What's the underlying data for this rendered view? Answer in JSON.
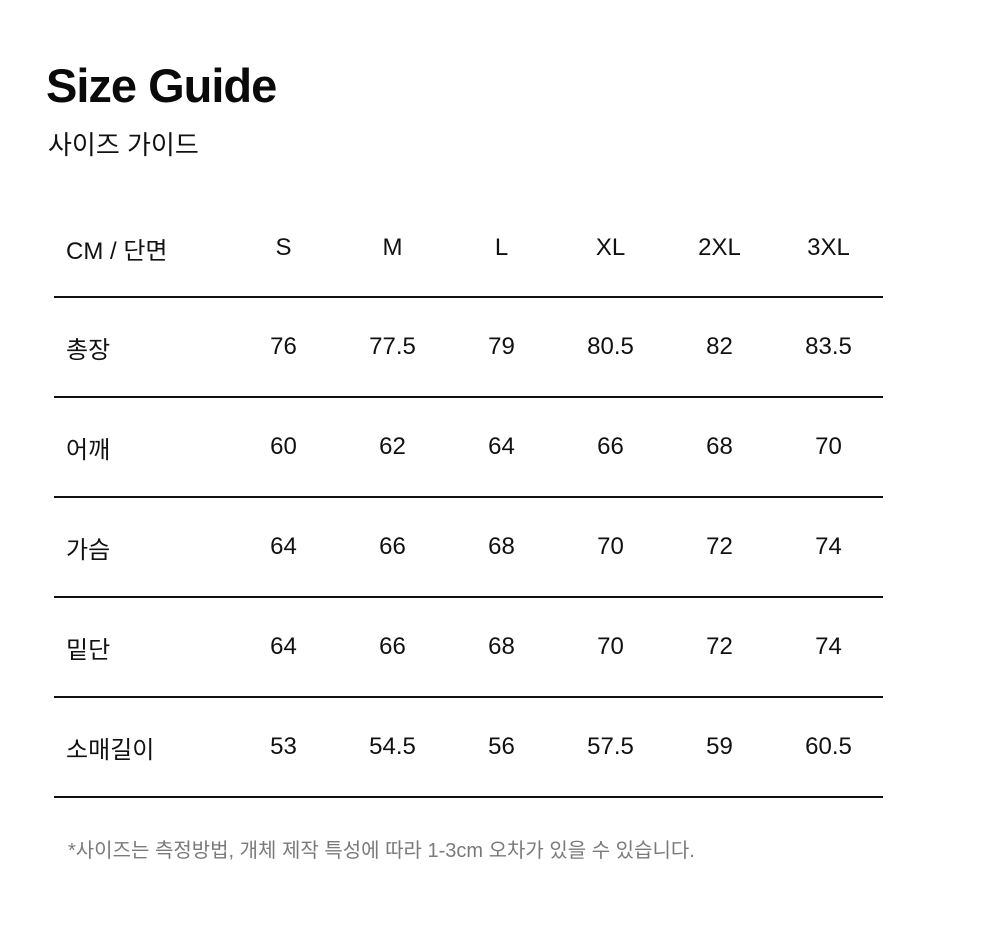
{
  "page": {
    "title": "Size Guide",
    "subtitle": "사이즈 가이드",
    "note": "*사이즈는 측정방법, 개체 제작 특성에 따라 1-3cm 오차가 있을 수 있습니다."
  },
  "colors": {
    "background": "#ffffff",
    "text": "#111111",
    "rule": "#111111",
    "note_text": "#7a7a7a"
  },
  "size_table": {
    "unit_label": "CM / 단면",
    "columns": [
      "S",
      "M",
      "L",
      "XL",
      "2XL",
      "3XL"
    ],
    "rows": [
      {
        "label": "총장",
        "values": [
          "76",
          "77.5",
          "79",
          "80.5",
          "82",
          "83.5"
        ]
      },
      {
        "label": "어깨",
        "values": [
          "60",
          "62",
          "64",
          "66",
          "68",
          "70"
        ]
      },
      {
        "label": "가슴",
        "values": [
          "64",
          "66",
          "68",
          "70",
          "72",
          "74"
        ]
      },
      {
        "label": "밑단",
        "values": [
          "64",
          "66",
          "68",
          "70",
          "72",
          "74"
        ]
      },
      {
        "label": "소매길이",
        "values": [
          "53",
          "54.5",
          "56",
          "57.5",
          "59",
          "60.5"
        ]
      }
    ]
  },
  "chart_data": {
    "type": "table",
    "title": "Size Guide (사이즈 가이드)",
    "unit": "CM / 단면",
    "columns": [
      "CM / 단면",
      "S",
      "M",
      "L",
      "XL",
      "2XL",
      "3XL"
    ],
    "rows": [
      [
        "총장",
        76,
        77.5,
        79,
        80.5,
        82,
        83.5
      ],
      [
        "어깨",
        60,
        62,
        64,
        66,
        68,
        70
      ],
      [
        "가슴",
        64,
        66,
        68,
        70,
        72,
        74
      ],
      [
        "밑단",
        64,
        66,
        68,
        70,
        72,
        74
      ],
      [
        "소매길이",
        53,
        54.5,
        56,
        57.5,
        59,
        60.5
      ]
    ],
    "footnote": "*사이즈는 측정방법, 개체 제작 특성에 따라 1-3cm 오차가 있을 수 있습니다."
  }
}
